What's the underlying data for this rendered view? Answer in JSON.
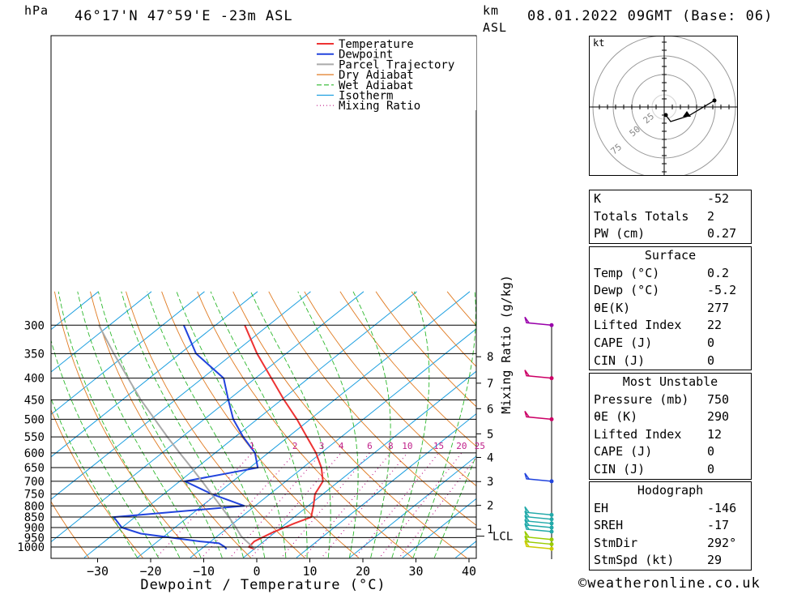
{
  "header": {
    "unit_hpa": "hPa",
    "location": "46°17'N  47°59'E  -23m  ASL",
    "unit_km": "km",
    "unit_asl": "ASL",
    "datetime": "08.01.2022  09GMT  (Base: 06)"
  },
  "chart_data": {
    "type": "line",
    "title": "",
    "xlabel": "Dewpoint / Temperature (°C)",
    "ylabel": "hPa",
    "right_label": "Mixing Ratio (g/kg)",
    "xlim": [
      -40,
      40
    ],
    "ylim": [
      1050,
      300
    ],
    "skew": "skew-T log-p",
    "pressure_levels": [
      300,
      350,
      400,
      450,
      500,
      550,
      600,
      650,
      700,
      750,
      800,
      850,
      900,
      950,
      1000
    ],
    "x_ticks": [
      -30,
      -20,
      -10,
      0,
      10,
      20,
      30,
      40
    ],
    "km_ticks": [
      {
        "km": 1,
        "p": 908
      },
      {
        "km": 2,
        "p": 798
      },
      {
        "km": 3,
        "p": 701
      },
      {
        "km": 4,
        "p": 615
      },
      {
        "km": 5,
        "p": 541
      },
      {
        "km": 6,
        "p": 472
      },
      {
        "km": 7,
        "p": 411
      },
      {
        "km": 8,
        "p": 356
      }
    ],
    "lcl": {
      "label": "LCL",
      "p": 943
    },
    "mixing_ratio_labels": [
      "1",
      "2",
      "3",
      "4",
      "6",
      "8",
      "10",
      "15",
      "20",
      "25"
    ],
    "mixing_ratio_values": [
      1,
      2,
      3,
      4,
      6,
      8,
      10,
      15,
      20,
      25
    ],
    "legend": [
      "Temperature",
      "Dewpoint",
      "Parcel Trajectory",
      "Dry Adiabat",
      "Wet Adiabat",
      "Isotherm",
      "Mixing Ratio"
    ],
    "legend_position": "top-right",
    "series": [
      {
        "name": "Temperature",
        "color": "#ee3333",
        "points": [
          [
            1012,
            0.2
          ],
          [
            1000,
            -1.5
          ],
          [
            970,
            -1.8
          ],
          [
            925,
            -0.5
          ],
          [
            880,
            1.5
          ],
          [
            850,
            3.2
          ],
          [
            800,
            1.0
          ],
          [
            750,
            -1.5
          ],
          [
            700,
            -3.0
          ],
          [
            650,
            -6.5
          ],
          [
            600,
            -11.0
          ],
          [
            550,
            -16.5
          ],
          [
            500,
            -22.5
          ],
          [
            450,
            -29.5
          ],
          [
            400,
            -37.0
          ],
          [
            350,
            -45.5
          ],
          [
            300,
            -54.5
          ]
        ]
      },
      {
        "name": "Dewpoint",
        "color": "#2244dd",
        "points": [
          [
            1012,
            -5.2
          ],
          [
            1000,
            -6.0
          ],
          [
            980,
            -8.0
          ],
          [
            970,
            -12.0
          ],
          [
            930,
            -25.0
          ],
          [
            900,
            -30.0
          ],
          [
            850,
            -34.0
          ],
          [
            800,
            -12.0
          ],
          [
            750,
            -21.0
          ],
          [
            700,
            -29.0
          ],
          [
            650,
            -18.5
          ],
          [
            600,
            -22.5
          ],
          [
            550,
            -28.5
          ],
          [
            500,
            -34.5
          ],
          [
            450,
            -40.0
          ],
          [
            400,
            -46.0
          ],
          [
            350,
            -57.0
          ],
          [
            300,
            -66.0
          ]
        ]
      },
      {
        "name": "Parcel Trajectory",
        "color": "#aaaaaa",
        "points": [
          [
            1012,
            0.2
          ],
          [
            943,
            -5.5
          ],
          [
            900,
            -8.5
          ],
          [
            850,
            -12.3
          ],
          [
            800,
            -16.5
          ],
          [
            750,
            -21.0
          ],
          [
            700,
            -25.8
          ],
          [
            650,
            -31.0
          ],
          [
            600,
            -36.7
          ],
          [
            550,
            -42.8
          ],
          [
            500,
            -49.3
          ],
          [
            450,
            -56.5
          ],
          [
            400,
            -64.0
          ],
          [
            350,
            -72.5
          ],
          [
            300,
            -82.0
          ]
        ]
      }
    ]
  },
  "hodograph": {
    "unit": "kt",
    "ring_labels": [
      "25",
      "50",
      "75"
    ]
  },
  "wind_barbs_count": 12,
  "stats": {
    "indices": [
      {
        "label": "K",
        "value": "-52"
      },
      {
        "label": "Totals Totals",
        "value": "2"
      },
      {
        "label": "PW (cm)",
        "value": "0.27"
      }
    ],
    "surface": {
      "title": "Surface",
      "rows": [
        {
          "label": "Temp (°C)",
          "value": "0.2"
        },
        {
          "label": "Dewp (°C)",
          "value": "-5.2"
        },
        {
          "label": "θE(K)",
          "value": "277"
        },
        {
          "label": "Lifted Index",
          "value": "22"
        },
        {
          "label": "CAPE (J)",
          "value": "0"
        },
        {
          "label": "CIN (J)",
          "value": "0"
        }
      ]
    },
    "most_unstable": {
      "title": "Most Unstable",
      "rows": [
        {
          "label": "Pressure (mb)",
          "value": "750"
        },
        {
          "label": "θE (K)",
          "value": "290"
        },
        {
          "label": "Lifted Index",
          "value": "12"
        },
        {
          "label": "CAPE (J)",
          "value": "0"
        },
        {
          "label": "CIN (J)",
          "value": "0"
        }
      ]
    },
    "hodograph_stats": {
      "title": "Hodograph",
      "rows": [
        {
          "label": "EH",
          "value": "-146"
        },
        {
          "label": "SREH",
          "value": "-17"
        },
        {
          "label": "StmDir",
          "value": "292°"
        },
        {
          "label": "StmSpd (kt)",
          "value": "29"
        }
      ]
    }
  },
  "footer": {
    "copyright": "©weatheronline.co.uk"
  }
}
